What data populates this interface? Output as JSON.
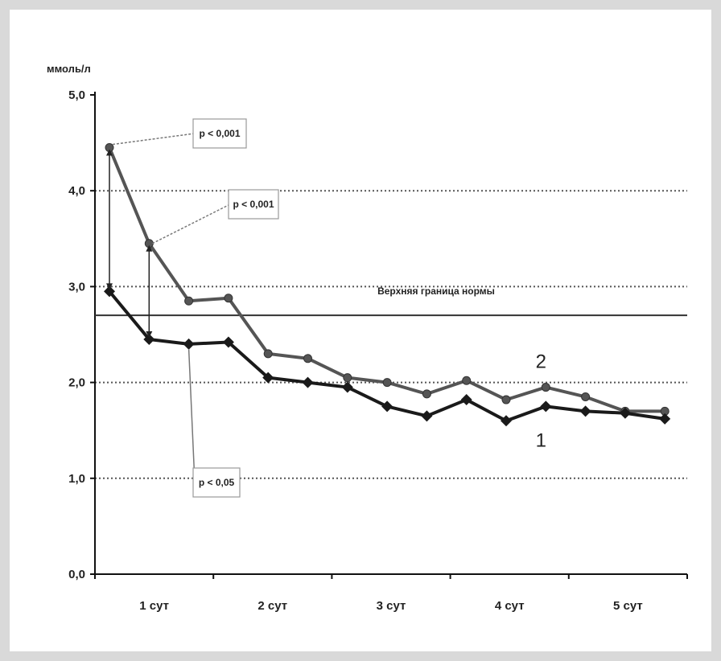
{
  "chart_data": {
    "type": "line",
    "ylabel": "ммоль/л",
    "ylim": [
      0,
      5
    ],
    "yticks": [
      "0,0",
      "1,0",
      "2,0",
      "3,0",
      "4,0",
      "5,0"
    ],
    "xtick_labels": [
      "1 сут",
      "2 сут",
      "3 сут",
      "4 сут",
      "5 сут"
    ],
    "grid": "horizontal-dotted",
    "x": [
      1,
      2,
      3,
      4,
      5,
      6,
      7,
      8,
      9,
      10,
      11,
      12,
      13,
      14,
      15
    ],
    "series": [
      {
        "name": "1",
        "color": "#1a1a1a",
        "marker": "diamond",
        "values": [
          2.95,
          2.45,
          2.4,
          2.42,
          2.05,
          2.0,
          1.95,
          1.75,
          1.65,
          1.82,
          1.6,
          1.75,
          1.7,
          1.68,
          1.62
        ]
      },
      {
        "name": "2",
        "color": "#555555",
        "marker": "circle",
        "values": [
          4.45,
          3.45,
          2.85,
          2.88,
          2.3,
          2.25,
          2.05,
          2.0,
          1.88,
          2.02,
          1.82,
          1.95,
          1.85,
          1.7,
          1.7
        ]
      }
    ],
    "reference_line": {
      "value": 2.7,
      "label": "Верхняя граница нормы"
    },
    "annotations": [
      {
        "text": "p < 0,001"
      },
      {
        "text": "p < 0,001"
      },
      {
        "text": "p < 0,05"
      }
    ]
  }
}
